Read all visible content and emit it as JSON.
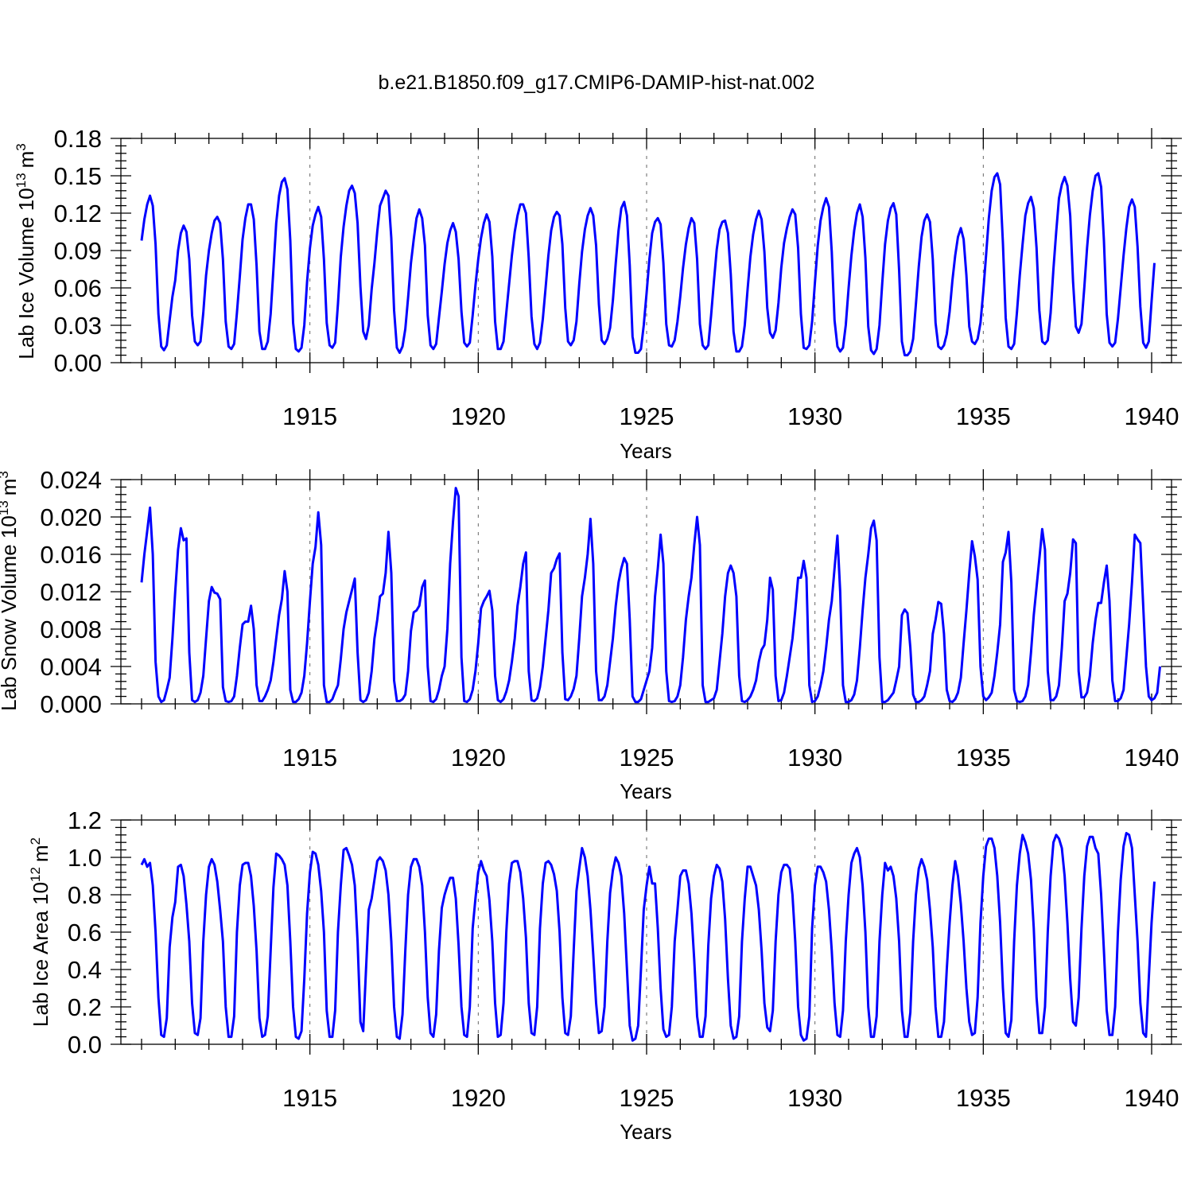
{
  "figure": {
    "title": "b.e21.B1850.f09_g17.CMIP6-DAMIP-hist-nat.002",
    "line_color": "#0000ff"
  },
  "chart_data": [
    {
      "type": "line",
      "title": "",
      "xlabel": "Years",
      "ylabel": "Lab Ice Volume 10",
      "ylabel_exp": "13",
      "ylabel_unit": "m",
      "ylabel_unit_exp": "3",
      "xlim": [
        1910.0,
        1940.0
      ],
      "ylim": [
        0.0,
        0.18
      ],
      "yticks": [
        0.0,
        0.03,
        0.06,
        0.09,
        0.12,
        0.15,
        0.18
      ],
      "ytick_labels": [
        "0.00",
        "0.03",
        "0.06",
        "0.09",
        "0.12",
        "0.15",
        "0.18"
      ],
      "xticks": [
        1915,
        1920,
        1925,
        1930,
        1935,
        1940
      ],
      "xtick_labels": [
        "1915",
        "1920",
        "1925",
        "1930",
        "1935",
        "1940"
      ],
      "grid_x": [
        1915,
        1920,
        1925,
        1930,
        1935
      ],
      "x_start": 1910.0,
      "step": 0.08333,
      "values": [
        0.098,
        0.115,
        0.127,
        0.134,
        0.126,
        0.095,
        0.039,
        0.013,
        0.01,
        0.014,
        0.034,
        0.053,
        0.066,
        0.09,
        0.104,
        0.11,
        0.105,
        0.083,
        0.038,
        0.017,
        0.014,
        0.017,
        0.04,
        0.07,
        0.09,
        0.104,
        0.114,
        0.117,
        0.112,
        0.083,
        0.033,
        0.013,
        0.011,
        0.015,
        0.04,
        0.069,
        0.099,
        0.116,
        0.127,
        0.127,
        0.115,
        0.078,
        0.025,
        0.011,
        0.011,
        0.017,
        0.039,
        0.075,
        0.112,
        0.134,
        0.145,
        0.148,
        0.139,
        0.098,
        0.032,
        0.011,
        0.009,
        0.012,
        0.03,
        0.065,
        0.092,
        0.11,
        0.119,
        0.125,
        0.117,
        0.083,
        0.032,
        0.014,
        0.012,
        0.016,
        0.047,
        0.085,
        0.109,
        0.126,
        0.138,
        0.142,
        0.136,
        0.112,
        0.061,
        0.025,
        0.019,
        0.03,
        0.059,
        0.08,
        0.105,
        0.126,
        0.132,
        0.138,
        0.134,
        0.1,
        0.042,
        0.012,
        0.008,
        0.013,
        0.027,
        0.052,
        0.08,
        0.099,
        0.116,
        0.123,
        0.116,
        0.094,
        0.038,
        0.014,
        0.011,
        0.015,
        0.036,
        0.057,
        0.079,
        0.096,
        0.106,
        0.112,
        0.105,
        0.083,
        0.041,
        0.016,
        0.013,
        0.016,
        0.038,
        0.062,
        0.083,
        0.1,
        0.112,
        0.119,
        0.113,
        0.085,
        0.033,
        0.011,
        0.011,
        0.017,
        0.04,
        0.063,
        0.086,
        0.105,
        0.118,
        0.127,
        0.127,
        0.12,
        0.084,
        0.037,
        0.015,
        0.011,
        0.016,
        0.035,
        0.06,
        0.086,
        0.106,
        0.117,
        0.121,
        0.118,
        0.095,
        0.044,
        0.017,
        0.014,
        0.018,
        0.033,
        0.063,
        0.089,
        0.107,
        0.118,
        0.124,
        0.118,
        0.094,
        0.047,
        0.018,
        0.015,
        0.019,
        0.028,
        0.05,
        0.08,
        0.106,
        0.124,
        0.129,
        0.118,
        0.078,
        0.021,
        0.008,
        0.008,
        0.011,
        0.03,
        0.056,
        0.083,
        0.104,
        0.113,
        0.116,
        0.111,
        0.08,
        0.031,
        0.014,
        0.013,
        0.018,
        0.033,
        0.053,
        0.076,
        0.095,
        0.108,
        0.116,
        0.112,
        0.083,
        0.031,
        0.014,
        0.011,
        0.014,
        0.038,
        0.065,
        0.091,
        0.107,
        0.113,
        0.114,
        0.104,
        0.071,
        0.025,
        0.009,
        0.009,
        0.013,
        0.03,
        0.059,
        0.085,
        0.103,
        0.115,
        0.122,
        0.115,
        0.089,
        0.044,
        0.024,
        0.02,
        0.026,
        0.048,
        0.076,
        0.096,
        0.108,
        0.117,
        0.123,
        0.119,
        0.092,
        0.039,
        0.012,
        0.011,
        0.014,
        0.033,
        0.064,
        0.094,
        0.114,
        0.125,
        0.132,
        0.125,
        0.089,
        0.034,
        0.013,
        0.009,
        0.012,
        0.03,
        0.06,
        0.086,
        0.106,
        0.12,
        0.127,
        0.117,
        0.084,
        0.029,
        0.01,
        0.007,
        0.011,
        0.03,
        0.064,
        0.095,
        0.114,
        0.124,
        0.128,
        0.119,
        0.074,
        0.017,
        0.006,
        0.006,
        0.009,
        0.019,
        0.047,
        0.077,
        0.101,
        0.114,
        0.119,
        0.113,
        0.083,
        0.032,
        0.013,
        0.011,
        0.014,
        0.023,
        0.041,
        0.066,
        0.086,
        0.101,
        0.108,
        0.099,
        0.07,
        0.029,
        0.017,
        0.015,
        0.019,
        0.032,
        0.057,
        0.086,
        0.116,
        0.138,
        0.149,
        0.152,
        0.143,
        0.096,
        0.036,
        0.013,
        0.011,
        0.015,
        0.04,
        0.07,
        0.095,
        0.118,
        0.128,
        0.133,
        0.124,
        0.092,
        0.042,
        0.017,
        0.015,
        0.018,
        0.04,
        0.075,
        0.105,
        0.132,
        0.143,
        0.149,
        0.142,
        0.118,
        0.065,
        0.029,
        0.024,
        0.031,
        0.06,
        0.092,
        0.118,
        0.138,
        0.15,
        0.152,
        0.141,
        0.098,
        0.039,
        0.016,
        0.013,
        0.016,
        0.035,
        0.06,
        0.086,
        0.108,
        0.125,
        0.131,
        0.125,
        0.093,
        0.045,
        0.016,
        0.012,
        0.017,
        0.049,
        0.08
      ]
    },
    {
      "type": "line",
      "title": "",
      "xlabel": "Years",
      "ylabel": "Lab Snow Volume 10",
      "ylabel_exp": "13",
      "ylabel_unit": "m",
      "ylabel_unit_exp": "3",
      "xlim": [
        1910.0,
        1940.0
      ],
      "ylim": [
        0.0,
        0.024
      ],
      "yticks": [
        0.0,
        0.004,
        0.008,
        0.012,
        0.016,
        0.02,
        0.024
      ],
      "ytick_labels": [
        "0.000",
        "0.004",
        "0.008",
        "0.012",
        "0.016",
        "0.020",
        "0.024"
      ],
      "xticks": [
        1915,
        1920,
        1925,
        1930,
        1935,
        1940
      ],
      "xtick_labels": [
        "1915",
        "1920",
        "1925",
        "1930",
        "1935",
        "1940"
      ],
      "grid_x": [
        1915,
        1920,
        1925,
        1930,
        1935
      ],
      "x_start": 1910.0,
      "step": 0.08333,
      "values": [
        0.013,
        0.016,
        0.0185,
        0.021,
        0.016,
        0.0045,
        0.0008,
        0.0002,
        0.0004,
        0.0015,
        0.0028,
        0.007,
        0.012,
        0.0165,
        0.0188,
        0.0175,
        0.0177,
        0.0055,
        0.0004,
        0.0002,
        0.0004,
        0.0012,
        0.003,
        0.007,
        0.011,
        0.0125,
        0.0119,
        0.0118,
        0.0112,
        0.0018,
        0.0003,
        0.0002,
        0.0003,
        0.0008,
        0.003,
        0.006,
        0.0085,
        0.0088,
        0.0088,
        0.0105,
        0.008,
        0.002,
        0.0003,
        0.0003,
        0.0008,
        0.0015,
        0.0025,
        0.0045,
        0.007,
        0.0095,
        0.0112,
        0.0142,
        0.012,
        0.0015,
        0.0002,
        0.0002,
        0.0005,
        0.0012,
        0.003,
        0.0065,
        0.011,
        0.015,
        0.0168,
        0.0205,
        0.017,
        0.002,
        0.0002,
        0.0002,
        0.0005,
        0.0013,
        0.002,
        0.0048,
        0.008,
        0.0098,
        0.011,
        0.0122,
        0.0134,
        0.0055,
        0.0004,
        0.0002,
        0.0004,
        0.0012,
        0.0035,
        0.007,
        0.009,
        0.0115,
        0.0118,
        0.014,
        0.0184,
        0.014,
        0.0025,
        0.0003,
        0.0003,
        0.0005,
        0.001,
        0.0035,
        0.0078,
        0.0098,
        0.01,
        0.0105,
        0.0125,
        0.0132,
        0.004,
        0.0003,
        0.0002,
        0.0005,
        0.0015,
        0.003,
        0.004,
        0.008,
        0.015,
        0.0195,
        0.0231,
        0.0222,
        0.005,
        0.0003,
        0.0002,
        0.0005,
        0.0015,
        0.0035,
        0.0065,
        0.0102,
        0.011,
        0.0115,
        0.0121,
        0.01,
        0.003,
        0.0004,
        0.0002,
        0.0005,
        0.0013,
        0.0025,
        0.0045,
        0.007,
        0.0105,
        0.0125,
        0.015,
        0.0162,
        0.0035,
        0.0004,
        0.0003,
        0.0006,
        0.0018,
        0.004,
        0.007,
        0.01,
        0.014,
        0.0145,
        0.0155,
        0.0161,
        0.0055,
        0.0005,
        0.0004,
        0.0008,
        0.0016,
        0.003,
        0.007,
        0.0115,
        0.0135,
        0.016,
        0.0198,
        0.015,
        0.0035,
        0.0004,
        0.0004,
        0.0008,
        0.002,
        0.0045,
        0.007,
        0.0105,
        0.013,
        0.0145,
        0.0156,
        0.015,
        0.009,
        0.0008,
        0.0002,
        0.0002,
        0.0005,
        0.0015,
        0.0025,
        0.0035,
        0.006,
        0.0115,
        0.0145,
        0.0181,
        0.015,
        0.0035,
        0.0003,
        0.0002,
        0.0003,
        0.0008,
        0.002,
        0.005,
        0.009,
        0.0115,
        0.0135,
        0.017,
        0.02,
        0.017,
        0.002,
        0.0002,
        0.0002,
        0.0004,
        0.0006,
        0.0015,
        0.0045,
        0.0075,
        0.0115,
        0.014,
        0.0148,
        0.014,
        0.0115,
        0.003,
        0.0003,
        0.0002,
        0.0004,
        0.0008,
        0.0015,
        0.0025,
        0.0045,
        0.0058,
        0.0063,
        0.009,
        0.0135,
        0.0122,
        0.003,
        0.0003,
        0.0004,
        0.0012,
        0.003,
        0.005,
        0.007,
        0.01,
        0.0135,
        0.0135,
        0.0153,
        0.0135,
        0.002,
        0.0002,
        0.0003,
        0.0008,
        0.002,
        0.0035,
        0.006,
        0.009,
        0.011,
        0.0145,
        0.018,
        0.012,
        0.002,
        0.0002,
        0.0002,
        0.0004,
        0.001,
        0.0025,
        0.006,
        0.01,
        0.0135,
        0.016,
        0.0188,
        0.0196,
        0.0175,
        0.005,
        0.0002,
        0.0002,
        0.0004,
        0.0008,
        0.0012,
        0.0025,
        0.004,
        0.0095,
        0.0101,
        0.0097,
        0.006,
        0.001,
        0.0002,
        0.0002,
        0.0004,
        0.0008,
        0.002,
        0.0035,
        0.0075,
        0.009,
        0.0109,
        0.0107,
        0.0075,
        0.0015,
        0.0003,
        0.0002,
        0.0005,
        0.0012,
        0.0028,
        0.0065,
        0.01,
        0.014,
        0.0174,
        0.0158,
        0.0133,
        0.004,
        0.0008,
        0.0004,
        0.0007,
        0.0012,
        0.003,
        0.0055,
        0.0085,
        0.0152,
        0.0162,
        0.0184,
        0.013,
        0.0015,
        0.0003,
        0.0002,
        0.0003,
        0.0008,
        0.002,
        0.0055,
        0.0095,
        0.0125,
        0.0155,
        0.0187,
        0.0165,
        0.0035,
        0.0004,
        0.0004,
        0.0008,
        0.002,
        0.006,
        0.011,
        0.0118,
        0.014,
        0.0176,
        0.0172,
        0.0035,
        0.0007,
        0.0007,
        0.0012,
        0.003,
        0.0065,
        0.009,
        0.0108,
        0.0108,
        0.013,
        0.0148,
        0.011,
        0.0025,
        0.0003,
        0.0003,
        0.0006,
        0.0015,
        0.005,
        0.0085,
        0.013,
        0.0181,
        0.0176,
        0.0172,
        0.0105,
        0.004,
        0.0008,
        0.0004,
        0.0006,
        0.0012,
        0.004
      ]
    },
    {
      "type": "line",
      "title": "",
      "xlabel": "Years",
      "ylabel": "Lab Ice Area 10",
      "ylabel_exp": "12",
      "ylabel_unit": "m",
      "ylabel_unit_exp": "2",
      "xlim": [
        1910.0,
        1940.0
      ],
      "ylim": [
        0.0,
        1.2
      ],
      "yticks": [
        0.0,
        0.2,
        0.4,
        0.6,
        0.8,
        1.0,
        1.2
      ],
      "ytick_labels": [
        "0.0",
        "0.2",
        "0.4",
        "0.6",
        "0.8",
        "1.0",
        "1.2"
      ],
      "xticks": [
        1915,
        1920,
        1925,
        1930,
        1935,
        1940
      ],
      "xtick_labels": [
        "1915",
        "1920",
        "1925",
        "1930",
        "1935",
        "1940"
      ],
      "grid_x": [
        1915,
        1920,
        1925,
        1930,
        1935
      ],
      "x_start": 1910.0,
      "step": 0.08333,
      "values": [
        0.96,
        0.99,
        0.95,
        0.97,
        0.85,
        0.6,
        0.25,
        0.05,
        0.04,
        0.14,
        0.52,
        0.68,
        0.76,
        0.95,
        0.96,
        0.9,
        0.75,
        0.55,
        0.22,
        0.06,
        0.05,
        0.14,
        0.55,
        0.8,
        0.95,
        0.99,
        0.96,
        0.87,
        0.72,
        0.55,
        0.2,
        0.04,
        0.04,
        0.15,
        0.6,
        0.85,
        0.96,
        0.97,
        0.97,
        0.9,
        0.74,
        0.5,
        0.14,
        0.04,
        0.05,
        0.15,
        0.5,
        0.84,
        1.02,
        1.01,
        0.99,
        0.96,
        0.85,
        0.55,
        0.2,
        0.04,
        0.03,
        0.07,
        0.35,
        0.7,
        0.92,
        1.03,
        1.02,
        0.96,
        0.82,
        0.6,
        0.18,
        0.04,
        0.04,
        0.18,
        0.6,
        0.85,
        1.04,
        1.05,
        1.01,
        0.96,
        0.85,
        0.55,
        0.12,
        0.07,
        0.4,
        0.72,
        0.78,
        0.88,
        0.98,
        1.0,
        0.98,
        0.93,
        0.8,
        0.55,
        0.2,
        0.04,
        0.03,
        0.16,
        0.5,
        0.8,
        0.95,
        0.99,
        0.99,
        0.95,
        0.85,
        0.6,
        0.25,
        0.06,
        0.04,
        0.16,
        0.5,
        0.73,
        0.8,
        0.85,
        0.89,
        0.89,
        0.78,
        0.53,
        0.2,
        0.05,
        0.04,
        0.2,
        0.62,
        0.78,
        0.92,
        0.98,
        0.93,
        0.9,
        0.77,
        0.55,
        0.22,
        0.04,
        0.05,
        0.22,
        0.6,
        0.86,
        0.97,
        0.98,
        0.98,
        0.92,
        0.78,
        0.57,
        0.22,
        0.06,
        0.05,
        0.2,
        0.62,
        0.86,
        0.97,
        0.98,
        0.96,
        0.91,
        0.82,
        0.6,
        0.25,
        0.06,
        0.05,
        0.15,
        0.5,
        0.82,
        0.94,
        1.05,
        1.0,
        0.9,
        0.72,
        0.48,
        0.22,
        0.06,
        0.07,
        0.2,
        0.55,
        0.81,
        0.93,
        1.0,
        0.97,
        0.9,
        0.7,
        0.4,
        0.1,
        0.02,
        0.03,
        0.1,
        0.4,
        0.72,
        0.85,
        0.95,
        0.86,
        0.86,
        0.62,
        0.3,
        0.08,
        0.04,
        0.05,
        0.2,
        0.55,
        0.72,
        0.9,
        0.93,
        0.93,
        0.86,
        0.7,
        0.45,
        0.15,
        0.04,
        0.04,
        0.15,
        0.53,
        0.78,
        0.9,
        0.96,
        0.94,
        0.87,
        0.67,
        0.35,
        0.1,
        0.03,
        0.04,
        0.15,
        0.55,
        0.78,
        0.95,
        0.95,
        0.9,
        0.85,
        0.72,
        0.5,
        0.22,
        0.09,
        0.07,
        0.18,
        0.55,
        0.8,
        0.92,
        0.96,
        0.96,
        0.94,
        0.8,
        0.55,
        0.2,
        0.05,
        0.02,
        0.03,
        0.15,
        0.62,
        0.85,
        0.95,
        0.95,
        0.92,
        0.87,
        0.72,
        0.5,
        0.22,
        0.05,
        0.04,
        0.18,
        0.55,
        0.8,
        0.97,
        1.02,
        1.05,
        1.0,
        0.85,
        0.6,
        0.2,
        0.04,
        0.04,
        0.15,
        0.55,
        0.8,
        0.97,
        0.93,
        0.95,
        0.9,
        0.78,
        0.55,
        0.18,
        0.04,
        0.04,
        0.17,
        0.55,
        0.8,
        0.94,
        0.99,
        0.95,
        0.88,
        0.72,
        0.52,
        0.2,
        0.04,
        0.04,
        0.12,
        0.4,
        0.65,
        0.85,
        0.98,
        0.9,
        0.75,
        0.55,
        0.3,
        0.12,
        0.05,
        0.06,
        0.25,
        0.65,
        0.9,
        1.06,
        1.1,
        1.1,
        1.05,
        0.9,
        0.65,
        0.3,
        0.06,
        0.04,
        0.13,
        0.55,
        0.85,
        1.02,
        1.12,
        1.08,
        1.02,
        0.88,
        0.62,
        0.25,
        0.06,
        0.06,
        0.2,
        0.6,
        0.9,
        1.08,
        1.12,
        1.1,
        1.05,
        0.9,
        0.65,
        0.35,
        0.12,
        0.1,
        0.25,
        0.62,
        0.9,
        1.06,
        1.11,
        1.11,
        1.05,
        1.02,
        0.8,
        0.5,
        0.18,
        0.05,
        0.05,
        0.2,
        0.6,
        0.88,
        1.06,
        1.13,
        1.12,
        1.05,
        0.8,
        0.55,
        0.22,
        0.06,
        0.04,
        0.35,
        0.65,
        0.87
      ]
    }
  ]
}
